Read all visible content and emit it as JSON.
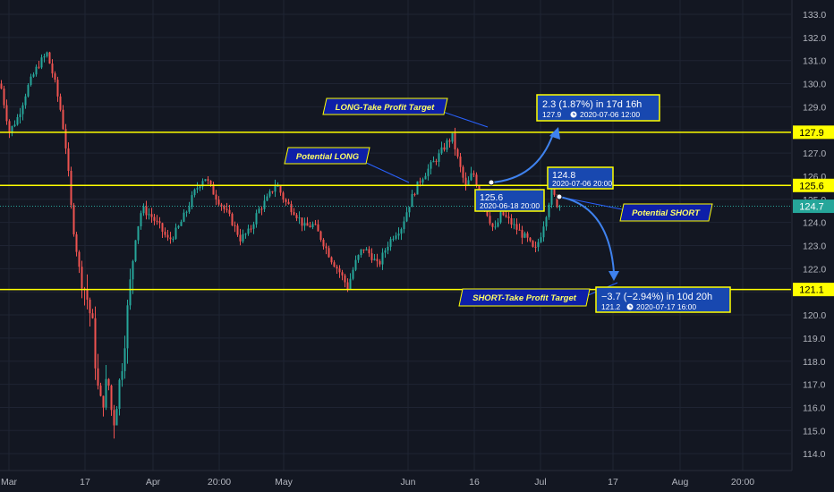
{
  "colors": {
    "background": "#131722",
    "grid": "#1f2433",
    "up": "#26a69a",
    "down": "#ef5350",
    "level_line": "#ffff00",
    "current_price_line": "#26a69a",
    "callout_fill": "#0d1fa8",
    "callout_text": "#ffff66",
    "callout_border": "#ffff00",
    "measure_fill": "#1848b0",
    "arrow": "#3f82ee",
    "axis_text": "#b2b5be"
  },
  "chart_data": {
    "type": "candlestick",
    "x_axis": {
      "tick_labels": [
        "Mar",
        "17",
        "Apr",
        "20:00",
        "May",
        "Jun",
        "16",
        "Jul",
        "17",
        "Aug",
        "20:00"
      ]
    },
    "y_axis": {
      "range": [
        112.7,
        133.3
      ],
      "tick_labels": [
        "113.0",
        "114.0",
        "115.0",
        "116.0",
        "117.0",
        "118.0",
        "119.0",
        "120.0",
        "121.0",
        "122.0",
        "123.0",
        "124.0",
        "125.0",
        "126.0",
        "127.0",
        "128.0",
        "129.0",
        "130.0",
        "131.0",
        "132.0",
        "133.0"
      ],
      "tick_values": [
        113,
        114,
        115,
        116,
        117,
        118,
        119,
        120,
        121,
        122,
        123,
        124,
        125,
        126,
        127,
        128,
        129,
        130,
        131,
        132,
        133
      ]
    },
    "horizontal_levels": [
      {
        "price": 127.9,
        "label": "127.9",
        "style": "solid"
      },
      {
        "price": 125.6,
        "label": "125.6",
        "style": "solid"
      },
      {
        "price": 121.1,
        "label": "121.1",
        "style": "solid"
      },
      {
        "price": 124.7,
        "label": "124.7",
        "style": "dotted-current"
      }
    ],
    "price_path": [
      [
        0,
        130.0
      ],
      [
        10,
        127.9
      ],
      [
        20,
        128.6
      ],
      [
        30,
        129.8
      ],
      [
        42,
        130.8
      ],
      [
        52,
        131.3
      ],
      [
        60,
        130.2
      ],
      [
        68,
        128.7
      ],
      [
        74,
        127.0
      ],
      [
        80,
        124.2
      ],
      [
        88,
        122.0
      ],
      [
        96,
        120.9
      ],
      [
        103,
        119.5
      ],
      [
        108,
        117.0
      ],
      [
        113,
        116.0
      ],
      [
        120,
        117.3
      ],
      [
        126,
        115.2
      ],
      [
        132,
        116.8
      ],
      [
        137,
        118.2
      ],
      [
        143,
        120.6
      ],
      [
        150,
        123.2
      ],
      [
        158,
        124.6
      ],
      [
        168,
        124.3
      ],
      [
        178,
        123.8
      ],
      [
        188,
        123.2
      ],
      [
        198,
        123.7
      ],
      [
        208,
        124.5
      ],
      [
        218,
        125.4
      ],
      [
        228,
        126.0
      ],
      [
        238,
        125.3
      ],
      [
        248,
        124.7
      ],
      [
        258,
        124.1
      ],
      [
        268,
        123.3
      ],
      [
        278,
        123.6
      ],
      [
        288,
        124.5
      ],
      [
        298,
        125.0
      ],
      [
        308,
        125.7
      ],
      [
        318,
        124.9
      ],
      [
        328,
        124.5
      ],
      [
        340,
        123.8
      ],
      [
        350,
        123.9
      ],
      [
        360,
        123.2
      ],
      [
        370,
        122.4
      ],
      [
        380,
        121.8
      ],
      [
        388,
        121.2
      ],
      [
        396,
        122.2
      ],
      [
        405,
        122.9
      ],
      [
        414,
        122.6
      ],
      [
        422,
        122.1
      ],
      [
        432,
        123.0
      ],
      [
        440,
        123.5
      ],
      [
        448,
        123.8
      ],
      [
        456,
        124.7
      ],
      [
        462,
        125.3
      ],
      [
        470,
        125.9
      ],
      [
        480,
        126.4
      ],
      [
        490,
        126.9
      ],
      [
        500,
        127.5
      ],
      [
        505,
        127.7
      ],
      [
        512,
        126.6
      ],
      [
        520,
        125.5
      ],
      [
        528,
        126.2
      ],
      [
        536,
        125.2
      ],
      [
        544,
        124.4
      ],
      [
        552,
        123.6
      ],
      [
        560,
        124.4
      ],
      [
        570,
        124.0
      ],
      [
        580,
        123.6
      ],
      [
        590,
        123.2
      ],
      [
        597,
        122.7
      ],
      [
        604,
        123.5
      ],
      [
        610,
        124.4
      ],
      [
        616,
        125.4
      ],
      [
        622,
        124.8
      ],
      [
        626,
        124.7
      ]
    ],
    "annotations": [
      {
        "type": "callout",
        "text": "LONG-Take Profit Target",
        "target_price": 127.9
      },
      {
        "type": "callout",
        "text": "Potential LONG",
        "target_price": 125.6
      },
      {
        "type": "callout",
        "text": "Potential SHORT",
        "target_price": 124.8
      },
      {
        "type": "callout",
        "text": "SHORT-Take Profit Target",
        "target_price": 121.1
      },
      {
        "type": "measure",
        "price": "125.6",
        "date": "2020-06-18 20:00"
      },
      {
        "type": "measure",
        "price": "124.8",
        "date": "2020-07-06 20:00"
      },
      {
        "type": "measure",
        "change": "2.3 (1.87%) in 17d 16h",
        "price": "127.9",
        "date": "2020-07-06  12:00"
      },
      {
        "type": "measure",
        "change": "−3.7 (−2.94%) in 10d 20h",
        "price": "121.2",
        "date": "2020-07-17  16:00"
      }
    ]
  },
  "labels": {
    "long_tp": "LONG-Take Profit Target",
    "potential_long": "Potential LONG",
    "potential_short": "Potential SHORT",
    "short_tp": "SHORT-Take Profit Target",
    "m_long_entry_price": "125.6",
    "m_long_entry_date": "2020-06-18 20:00",
    "m_short_entry_price": "124.8",
    "m_short_entry_date": "2020-07-06 20:00",
    "m_long_tp_change": "2.3 (1.87%) in 17d 16h",
    "m_long_tp_price": "127.9",
    "m_long_tp_date": "2020-07-06  12:00",
    "m_short_tp_change": "−3.7 (−2.94%) in 10d 20h",
    "m_short_tp_price": "121.2",
    "m_short_tp_date": "2020-07-17  16:00",
    "clock_icon": "clock-icon"
  }
}
